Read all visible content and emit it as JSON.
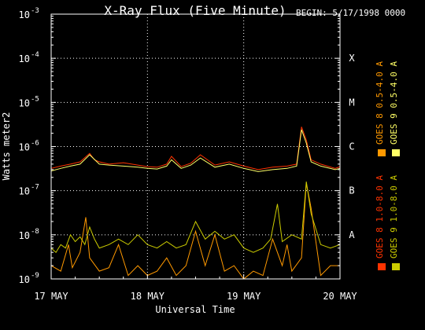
{
  "chart_data": {
    "type": "line",
    "title": "X-Ray Flux (Five Minute)",
    "begin_label": "BEGIN: 5/17/1998 0000",
    "xlabel": "Universal Time",
    "ylabel": "Watts meter2",
    "y_scale": "log",
    "ylim": [
      1e-09,
      0.001
    ],
    "y_ticks": [
      {
        "base": "10",
        "exp": "-9"
      },
      {
        "base": "10",
        "exp": "-8"
      },
      {
        "base": "10",
        "exp": "-7"
      },
      {
        "base": "10",
        "exp": "-6"
      },
      {
        "base": "10",
        "exp": "-5"
      },
      {
        "base": "10",
        "exp": "-4"
      },
      {
        "base": "10",
        "exp": "-3"
      }
    ],
    "x_ticks": [
      "17 MAY",
      "18 MAY",
      "19 MAY",
      "20 MAY"
    ],
    "xlim_days": [
      0,
      3
    ],
    "flare_classes": [
      {
        "label": "B",
        "level": 1e-07
      },
      {
        "label": "A",
        "level": 1e-08
      },
      {
        "label": "C",
        "level": 1e-06
      },
      {
        "label": "M",
        "level": 1e-05
      },
      {
        "label": "X",
        "level": 0.0001
      }
    ],
    "grid": true,
    "legend_position": "right, vertical",
    "series": [
      {
        "name": "GOES 8  1.0-8.0 A",
        "color": "#ff3300",
        "x": [
          0,
          0.1,
          0.2,
          0.3,
          0.4,
          0.45,
          0.5,
          0.6,
          0.75,
          0.9,
          1.0,
          1.1,
          1.2,
          1.25,
          1.35,
          1.45,
          1.55,
          1.7,
          1.85,
          2.0,
          2.15,
          2.3,
          2.45,
          2.55,
          2.6,
          2.65,
          2.7,
          2.8,
          2.95,
          3.0
        ],
        "values": [
          3.2e-07,
          3.6e-07,
          4e-07,
          4.5e-07,
          7e-07,
          5e-07,
          4.5e-07,
          4e-07,
          4.3e-07,
          3.8e-07,
          3.5e-07,
          3.4e-07,
          4e-07,
          6e-07,
          3.5e-07,
          4.2e-07,
          6.5e-07,
          3.8e-07,
          4.5e-07,
          3.6e-07,
          3e-07,
          3.4e-07,
          3.6e-07,
          4e-07,
          2.8e-06,
          1.4e-06,
          5e-07,
          4e-07,
          3.2e-07,
          3.5e-07
        ]
      },
      {
        "name": "GOES 8  0.5-4.0 A",
        "color": "#ff9900",
        "x": [
          0,
          0.1,
          0.18,
          0.22,
          0.3,
          0.36,
          0.4,
          0.5,
          0.6,
          0.7,
          0.8,
          0.9,
          1.0,
          1.1,
          1.2,
          1.3,
          1.4,
          1.5,
          1.6,
          1.7,
          1.8,
          1.9,
          2.0,
          2.1,
          2.2,
          2.3,
          2.4,
          2.45,
          2.5,
          2.6,
          2.65,
          2.7,
          2.8,
          2.9,
          3.0
        ],
        "values": [
          2e-09,
          1.5e-09,
          6e-09,
          1.8e-09,
          4e-09,
          2.5e-08,
          3e-09,
          1.5e-09,
          1.8e-09,
          6e-09,
          1.2e-09,
          2e-09,
          1.2e-09,
          1.5e-09,
          3e-09,
          1.2e-09,
          2e-09,
          1.2e-08,
          2e-09,
          1e-08,
          1.5e-09,
          2e-09,
          1e-09,
          1.5e-09,
          1.2e-09,
          8e-09,
          2e-09,
          6e-09,
          1.5e-09,
          3e-09,
          1.5e-07,
          4e-08,
          1.2e-09,
          2e-09,
          2e-09
        ]
      },
      {
        "name": "GOES 9  0.5-4.0 A",
        "color": "#ffff66",
        "x": [
          0,
          0.1,
          0.2,
          0.3,
          0.4,
          0.5,
          0.6,
          0.75,
          0.9,
          1.0,
          1.1,
          1.2,
          1.25,
          1.35,
          1.45,
          1.55,
          1.7,
          1.85,
          2.0,
          2.15,
          2.3,
          2.45,
          2.55,
          2.6,
          2.65,
          2.7,
          2.8,
          2.95,
          3.0
        ],
        "values": [
          2.8e-07,
          3.2e-07,
          3.6e-07,
          4e-07,
          6.5e-07,
          4e-07,
          3.8e-07,
          3.6e-07,
          3.4e-07,
          3.2e-07,
          3.1e-07,
          3.6e-07,
          5e-07,
          3.2e-07,
          3.8e-07,
          5.5e-07,
          3.4e-07,
          4e-07,
          3.2e-07,
          2.7e-07,
          3e-07,
          3.2e-07,
          3.6e-07,
          2.4e-06,
          1.2e-06,
          4.5e-07,
          3.6e-07,
          3e-07,
          3.2e-07
        ]
      },
      {
        "name": "GOES 9  1.0-8.0 A",
        "color": "#cccc00",
        "x": [
          0,
          0.05,
          0.1,
          0.15,
          0.2,
          0.25,
          0.3,
          0.35,
          0.4,
          0.45,
          0.5,
          0.6,
          0.7,
          0.8,
          0.9,
          1.0,
          1.1,
          1.2,
          1.3,
          1.4,
          1.5,
          1.6,
          1.7,
          1.8,
          1.9,
          2.0,
          2.1,
          2.2,
          2.28,
          2.35,
          2.4,
          2.5,
          2.6,
          2.65,
          2.7,
          2.8,
          2.9,
          3.0
        ],
        "values": [
          5e-09,
          4e-09,
          6e-09,
          5e-09,
          1e-08,
          7e-09,
          9e-09,
          6e-09,
          1.5e-08,
          8e-09,
          5e-09,
          6e-09,
          8e-09,
          6e-09,
          1e-08,
          6e-09,
          5e-09,
          7e-09,
          5e-09,
          6e-09,
          2e-08,
          8e-09,
          1.2e-08,
          8e-09,
          1e-08,
          5e-09,
          4e-09,
          5e-09,
          8e-09,
          5e-08,
          7e-09,
          1e-08,
          8e-09,
          1.6e-07,
          3e-08,
          6e-09,
          5e-09,
          6e-09
        ]
      }
    ]
  }
}
